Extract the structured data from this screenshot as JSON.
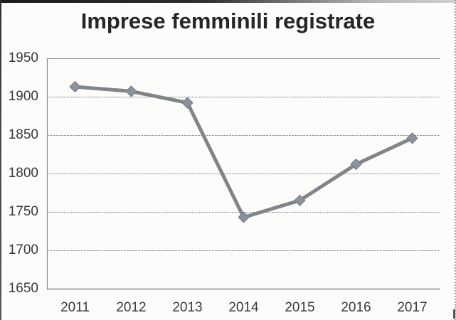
{
  "page": {
    "kind": "scanned printed line chart"
  },
  "chart_data": {
    "type": "line",
    "title": "Imprese femminili registrate",
    "categories": [
      "2011",
      "2012",
      "2013",
      "2014",
      "2015",
      "2016",
      "2017"
    ],
    "series": [
      {
        "name": "Imprese femminili registrate",
        "values": [
          1913,
          1907,
          1892,
          1743,
          1765,
          1812,
          1846
        ]
      }
    ],
    "xlabel": "",
    "ylabel": "",
    "ylim": [
      1650,
      1950
    ],
    "yticks": [
      1950,
      1900,
      1850,
      1800,
      1750,
      1700,
      1650
    ],
    "grid": true,
    "legend": "none",
    "marker": "diamond",
    "colors": {
      "line": "#909398",
      "line_texture": "#5f6368",
      "marker_fill": "#8a929c",
      "marker_edge": "#747c88",
      "gridline": "#9b9b9b",
      "axis_line": "#8a8a8a",
      "title_text": "#262626",
      "tick_text": "#3a3a3a",
      "background": "#fcfcfb"
    }
  }
}
